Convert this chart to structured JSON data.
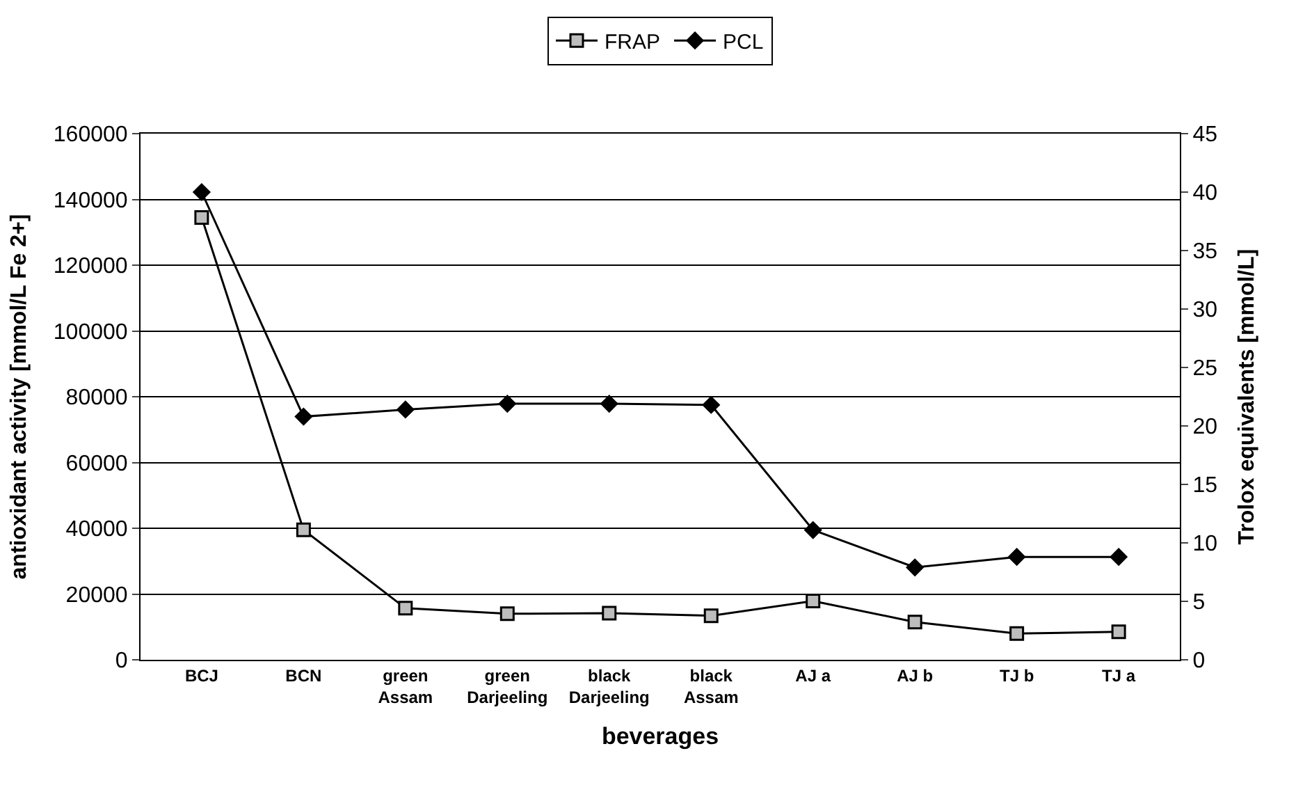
{
  "chart_data": {
    "type": "line",
    "xlabel": "beverages",
    "ylabel": "antioxidant activity [mmol/L Fe 2+]",
    "y2label": "Trolox equivalents [mmol/L]",
    "categories": [
      "BCJ",
      "BCN",
      "green Assam",
      "green Darjeeling",
      "black Darjeeling",
      "black Assam",
      "AJ a",
      "AJ b",
      "TJ b",
      "TJ a"
    ],
    "series": [
      {
        "name": "FRAP",
        "color": "#000000",
        "marker": "square",
        "values": [
          134500,
          39500,
          15700,
          14000,
          14200,
          13400,
          17900,
          11500,
          8000,
          8500
        ]
      },
      {
        "name": "PCL",
        "color": "#000000",
        "marker": "diamond",
        "axis": "y2",
        "values": [
          40.0,
          20.8,
          21.4,
          21.9,
          21.9,
          21.8,
          11.1,
          7.9,
          8.8,
          8.8
        ]
      }
    ],
    "ylim": [
      0,
      160000
    ],
    "yticks": [
      0,
      20000,
      40000,
      60000,
      80000,
      100000,
      120000,
      140000,
      160000
    ],
    "y2lim": [
      0,
      45
    ],
    "y2ticks": [
      0,
      5,
      10,
      15,
      20,
      25,
      30,
      35,
      40,
      45
    ],
    "grid": "y",
    "legend": "top",
    "line_style": "solid"
  }
}
